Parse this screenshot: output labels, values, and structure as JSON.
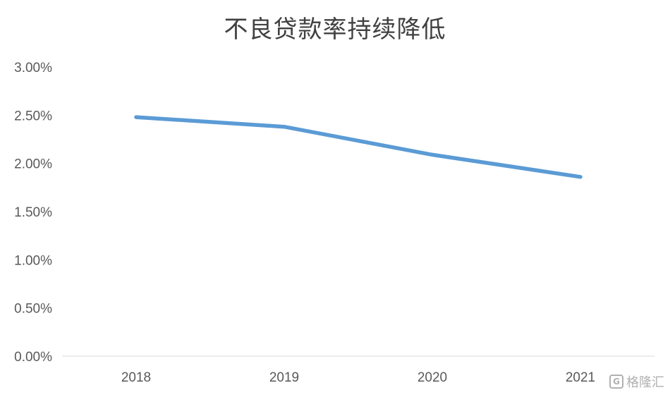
{
  "chart_data": {
    "type": "line",
    "title": "不良贷款率持续降低",
    "categories": [
      "2018",
      "2019",
      "2020",
      "2021"
    ],
    "series": [
      {
        "values": [
          2.48,
          2.38,
          2.09,
          1.86
        ],
        "color": "#5b9bd5"
      }
    ],
    "y_ticks": [
      "0.00%",
      "0.50%",
      "1.00%",
      "1.50%",
      "2.00%",
      "2.50%",
      "3.00%"
    ],
    "ylim": [
      0,
      3
    ],
    "grid": false,
    "legend": "none"
  },
  "watermark": {
    "text": "格隆汇",
    "logo": "G"
  }
}
